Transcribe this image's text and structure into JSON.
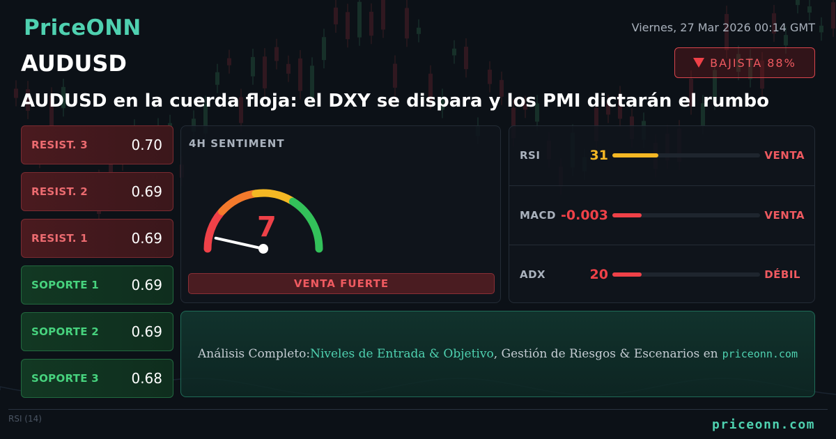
{
  "brand": {
    "logo": "PriceONN",
    "footer_url": "priceonn.com"
  },
  "header": {
    "datetime": "Viernes, 27 Mar 2026 00:14 GMT",
    "symbol": "AUDUSD",
    "bias": {
      "direction": "down",
      "label": "BAJISTA 88%"
    },
    "headline": "AUDUSD en la cuerda floja: el DXY se dispara y los PMI dictarán el rumbo"
  },
  "levels": [
    {
      "type": "resistance",
      "label": "RESIST. 3",
      "value": "0.70"
    },
    {
      "type": "resistance",
      "label": "RESIST. 2",
      "value": "0.69"
    },
    {
      "type": "resistance",
      "label": "RESIST. 1",
      "value": "0.69"
    },
    {
      "type": "support",
      "label": "SOPORTE 1",
      "value": "0.69"
    },
    {
      "type": "support",
      "label": "SOPORTE 2",
      "value": "0.69"
    },
    {
      "type": "support",
      "label": "SOPORTE 3",
      "value": "0.68"
    }
  ],
  "sentiment": {
    "title": "4H SENTIMENT",
    "score": "7",
    "score_max": 100,
    "verdict": "VENTA FUERTE",
    "colors": {
      "needle": "#ffffff",
      "score": "#ef4148"
    }
  },
  "indicators": [
    {
      "name": "RSI",
      "value": "31",
      "level": 0.31,
      "signal": "VENTA",
      "color": "#f5b824"
    },
    {
      "name": "MACD",
      "value": "-0.003",
      "level": 0.0,
      "signal": "VENTA",
      "color": "#ef4148"
    },
    {
      "name": "ADX",
      "value": "20",
      "level": 0.2,
      "signal": "DÉBIL",
      "color": "#ef4148"
    }
  ],
  "cta": {
    "lead": "Análisis Completo: ",
    "highlight": "Niveles de Entrada & Objetivo",
    "rest": ", Gestión de Riesgos & Escenarios en",
    "site": "priceonn.com"
  },
  "background": {
    "rsi_tag": "RSI  (14)"
  },
  "palette": {
    "accent": "#4fd1b0",
    "bearish": "#ef4148",
    "bullish": "#47d37e",
    "warning": "#f5b824"
  }
}
